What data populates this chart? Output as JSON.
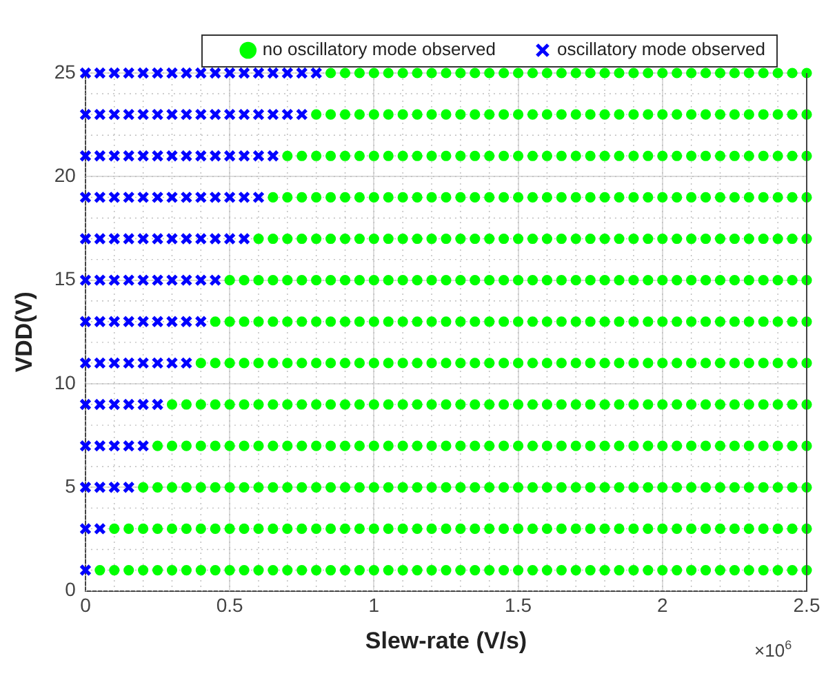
{
  "chart_data": {
    "type": "scatter",
    "xlabel": "Slew-rate (V/s)",
    "ylabel": "VDD(V)",
    "annotations": [
      "×10$^{6}$"
    ],
    "xlim": [
      0,
      2.5
    ],
    "ylim": [
      0,
      25
    ],
    "xticks": [
      0,
      0.5,
      1,
      1.5,
      2,
      2.5
    ],
    "yticks": [
      0,
      5,
      10,
      15,
      20,
      25
    ],
    "grid": true,
    "legend": "top",
    "series": [
      {
        "name": "no oscillatory mode observed",
        "color": "#00ff00",
        "marker": "circle",
        "x": [
          0.05,
          0.1,
          0.15,
          0.2,
          0.25,
          0.3,
          0.35,
          0.4,
          0.45,
          0.5,
          0.55,
          0.6,
          0.65,
          0.7,
          0.75,
          0.8,
          0.85,
          0.9,
          0.95,
          1,
          1.05,
          1.1,
          1.15,
          1.2,
          1.25,
          1.3,
          1.35,
          1.4,
          1.45,
          1.5,
          1.55,
          1.6,
          1.65,
          1.7,
          1.75,
          1.8,
          1.85,
          1.9,
          1.95,
          2,
          2.05,
          2.1,
          2.15,
          2.2,
          2.25,
          2.3,
          2.35,
          2.4,
          2.45,
          2.5,
          0.1,
          0.15,
          0.2,
          0.25,
          0.3,
          0.35,
          0.4,
          0.45,
          0.5,
          0.55,
          0.6,
          0.65,
          0.7,
          0.75,
          0.8,
          0.85,
          0.9,
          0.95,
          1,
          1.05,
          1.1,
          1.15,
          1.2,
          1.25,
          1.3,
          1.35,
          1.4,
          1.45,
          1.5,
          1.55,
          1.6,
          1.65,
          1.7,
          1.75,
          1.8,
          1.85,
          1.9,
          1.95,
          2,
          2.05,
          2.1,
          2.15,
          2.2,
          2.25,
          2.3,
          2.35,
          2.4,
          2.45,
          2.5,
          0.2,
          0.25,
          0.3,
          0.35,
          0.4,
          0.45,
          0.5,
          0.55,
          0.6,
          0.65,
          0.7,
          0.75,
          0.8,
          0.85,
          0.9,
          0.95,
          1,
          1.05,
          1.1,
          1.15,
          1.2,
          1.25,
          1.3,
          1.35,
          1.4,
          1.45,
          1.5,
          1.55,
          1.6,
          1.65,
          1.7,
          1.75,
          1.8,
          1.85,
          1.9,
          1.95,
          2,
          2.05,
          2.1,
          2.15,
          2.2,
          2.25,
          2.3,
          2.35,
          2.4,
          2.45,
          2.5,
          0.25,
          0.3,
          0.35,
          0.4,
          0.45,
          0.5,
          0.55,
          0.6,
          0.65,
          0.7,
          0.75,
          0.8,
          0.85,
          0.9,
          0.95,
          1,
          1.05,
          1.1,
          1.15,
          1.2,
          1.25,
          1.3,
          1.35,
          1.4,
          1.45,
          1.5,
          1.55,
          1.6,
          1.65,
          1.7,
          1.75,
          1.8,
          1.85,
          1.9,
          1.95,
          2,
          2.05,
          2.1,
          2.15,
          2.2,
          2.25,
          2.3,
          2.35,
          2.4,
          2.45,
          2.5,
          0.3,
          0.35,
          0.4,
          0.45,
          0.5,
          0.55,
          0.6,
          0.65,
          0.7,
          0.75,
          0.8,
          0.85,
          0.9,
          0.95,
          1,
          1.05,
          1.1,
          1.15,
          1.2,
          1.25,
          1.3,
          1.35,
          1.4,
          1.45,
          1.5,
          1.55,
          1.6,
          1.65,
          1.7,
          1.75,
          1.8,
          1.85,
          1.9,
          1.95,
          2,
          2.05,
          2.1,
          2.15,
          2.2,
          2.25,
          2.3,
          2.35,
          2.4,
          2.45,
          2.5,
          0.4,
          0.45,
          0.5,
          0.55,
          0.6,
          0.65,
          0.7,
          0.75,
          0.8,
          0.85,
          0.9,
          0.95,
          1,
          1.05,
          1.1,
          1.15,
          1.2,
          1.25,
          1.3,
          1.35,
          1.4,
          1.45,
          1.5,
          1.55,
          1.6,
          1.65,
          1.7,
          1.75,
          1.8,
          1.85,
          1.9,
          1.95,
          2,
          2.05,
          2.1,
          2.15,
          2.2,
          2.25,
          2.3,
          2.35,
          2.4,
          2.45,
          2.5,
          0.45,
          0.5,
          0.55,
          0.6,
          0.65,
          0.7,
          0.75,
          0.8,
          0.85,
          0.9,
          0.95,
          1,
          1.05,
          1.1,
          1.15,
          1.2,
          1.25,
          1.3,
          1.35,
          1.4,
          1.45,
          1.5,
          1.55,
          1.6,
          1.65,
          1.7,
          1.75,
          1.8,
          1.85,
          1.9,
          1.95,
          2,
          2.05,
          2.1,
          2.15,
          2.2,
          2.25,
          2.3,
          2.35,
          2.4,
          2.45,
          2.5,
          0.5,
          0.55,
          0.6,
          0.65,
          0.7,
          0.75,
          0.8,
          0.85,
          0.9,
          0.95,
          1,
          1.05,
          1.1,
          1.15,
          1.2,
          1.25,
          1.3,
          1.35,
          1.4,
          1.45,
          1.5,
          1.55,
          1.6,
          1.65,
          1.7,
          1.75,
          1.8,
          1.85,
          1.9,
          1.95,
          2,
          2.05,
          2.1,
          2.15,
          2.2,
          2.25,
          2.3,
          2.35,
          2.4,
          2.45,
          2.5,
          0.6,
          0.65,
          0.7,
          0.75,
          0.8,
          0.85,
          0.9,
          0.95,
          1,
          1.05,
          1.1,
          1.15,
          1.2,
          1.25,
          1.3,
          1.35,
          1.4,
          1.45,
          1.5,
          1.55,
          1.6,
          1.65,
          1.7,
          1.75,
          1.8,
          1.85,
          1.9,
          1.95,
          2,
          2.05,
          2.1,
          2.15,
          2.2,
          2.25,
          2.3,
          2.35,
          2.4,
          2.45,
          2.5,
          0.65,
          0.7,
          0.75,
          0.8,
          0.85,
          0.9,
          0.95,
          1,
          1.05,
          1.1,
          1.15,
          1.2,
          1.25,
          1.3,
          1.35,
          1.4,
          1.45,
          1.5,
          1.55,
          1.6,
          1.65,
          1.7,
          1.75,
          1.8,
          1.85,
          1.9,
          1.95,
          2,
          2.05,
          2.1,
          2.15,
          2.2,
          2.25,
          2.3,
          2.35,
          2.4,
          2.45,
          2.5,
          0.7,
          0.75,
          0.8,
          0.85,
          0.9,
          0.95,
          1,
          1.05,
          1.1,
          1.15,
          1.2,
          1.25,
          1.3,
          1.35,
          1.4,
          1.45,
          1.5,
          1.55,
          1.6,
          1.65,
          1.7,
          1.75,
          1.8,
          1.85,
          1.9,
          1.95,
          2,
          2.05,
          2.1,
          2.15,
          2.2,
          2.25,
          2.3,
          2.35,
          2.4,
          2.45,
          2.5,
          0.8,
          0.85,
          0.9,
          0.95,
          1,
          1.05,
          1.1,
          1.15,
          1.2,
          1.25,
          1.3,
          1.35,
          1.4,
          1.45,
          1.5,
          1.55,
          1.6,
          1.65,
          1.7,
          1.75,
          1.8,
          1.85,
          1.9,
          1.95,
          2,
          2.05,
          2.1,
          2.15,
          2.2,
          2.25,
          2.3,
          2.35,
          2.4,
          2.45,
          2.5,
          0.85,
          0.9,
          0.95,
          1,
          1.05,
          1.1,
          1.15,
          1.2,
          1.25,
          1.3,
          1.35,
          1.4,
          1.45,
          1.5,
          1.55,
          1.6,
          1.65,
          1.7,
          1.75,
          1.8,
          1.85,
          1.9,
          1.95,
          2,
          2.05,
          2.1,
          2.15,
          2.2,
          2.25,
          2.3,
          2.35,
          2.4,
          2.45,
          2.5
        ],
        "values": [
          1,
          1,
          1,
          1,
          1,
          1,
          1,
          1,
          1,
          1,
          1,
          1,
          1,
          1,
          1,
          1,
          1,
          1,
          1,
          1,
          1,
          1,
          1,
          1,
          1,
          1,
          1,
          1,
          1,
          1,
          1,
          1,
          1,
          1,
          1,
          1,
          1,
          1,
          1,
          1,
          1,
          1,
          1,
          1,
          1,
          1,
          1,
          1,
          1,
          1,
          3,
          3,
          3,
          3,
          3,
          3,
          3,
          3,
          3,
          3,
          3,
          3,
          3,
          3,
          3,
          3,
          3,
          3,
          3,
          3,
          3,
          3,
          3,
          3,
          3,
          3,
          3,
          3,
          3,
          3,
          3,
          3,
          3,
          3,
          3,
          3,
          3,
          3,
          3,
          3,
          3,
          3,
          3,
          3,
          3,
          3,
          3,
          3,
          3,
          5,
          5,
          5,
          5,
          5,
          5,
          5,
          5,
          5,
          5,
          5,
          5,
          5,
          5,
          5,
          5,
          5,
          5,
          5,
          5,
          5,
          5,
          5,
          5,
          5,
          5,
          5,
          5,
          5,
          5,
          5,
          5,
          5,
          5,
          5,
          5,
          5,
          5,
          5,
          5,
          5,
          5,
          5,
          5,
          5,
          5,
          5,
          7,
          7,
          7,
          7,
          7,
          7,
          7,
          7,
          7,
          7,
          7,
          7,
          7,
          7,
          7,
          7,
          7,
          7,
          7,
          7,
          7,
          7,
          7,
          7,
          7,
          7,
          7,
          7,
          7,
          7,
          7,
          7,
          7,
          7,
          7,
          7,
          7,
          7,
          7,
          7,
          7,
          7,
          7,
          7,
          7,
          7,
          9,
          9,
          9,
          9,
          9,
          9,
          9,
          9,
          9,
          9,
          9,
          9,
          9,
          9,
          9,
          9,
          9,
          9,
          9,
          9,
          9,
          9,
          9,
          9,
          9,
          9,
          9,
          9,
          9,
          9,
          9,
          9,
          9,
          9,
          9,
          9,
          9,
          9,
          9,
          9,
          9,
          9,
          9,
          9,
          9,
          11,
          11,
          11,
          11,
          11,
          11,
          11,
          11,
          11,
          11,
          11,
          11,
          11,
          11,
          11,
          11,
          11,
          11,
          11,
          11,
          11,
          11,
          11,
          11,
          11,
          11,
          11,
          11,
          11,
          11,
          11,
          11,
          11,
          11,
          11,
          11,
          11,
          11,
          11,
          11,
          11,
          11,
          11,
          13,
          13,
          13,
          13,
          13,
          13,
          13,
          13,
          13,
          13,
          13,
          13,
          13,
          13,
          13,
          13,
          13,
          13,
          13,
          13,
          13,
          13,
          13,
          13,
          13,
          13,
          13,
          13,
          13,
          13,
          13,
          13,
          13,
          13,
          13,
          13,
          13,
          13,
          13,
          13,
          13,
          13,
          15,
          15,
          15,
          15,
          15,
          15,
          15,
          15,
          15,
          15,
          15,
          15,
          15,
          15,
          15,
          15,
          15,
          15,
          15,
          15,
          15,
          15,
          15,
          15,
          15,
          15,
          15,
          15,
          15,
          15,
          15,
          15,
          15,
          15,
          15,
          15,
          15,
          15,
          15,
          15,
          15,
          17,
          17,
          17,
          17,
          17,
          17,
          17,
          17,
          17,
          17,
          17,
          17,
          17,
          17,
          17,
          17,
          17,
          17,
          17,
          17,
          17,
          17,
          17,
          17,
          17,
          17,
          17,
          17,
          17,
          17,
          17,
          17,
          17,
          17,
          17,
          17,
          17,
          17,
          17,
          19,
          19,
          19,
          19,
          19,
          19,
          19,
          19,
          19,
          19,
          19,
          19,
          19,
          19,
          19,
          19,
          19,
          19,
          19,
          19,
          19,
          19,
          19,
          19,
          19,
          19,
          19,
          19,
          19,
          19,
          19,
          19,
          19,
          19,
          19,
          19,
          19,
          19,
          21,
          21,
          21,
          21,
          21,
          21,
          21,
          21,
          21,
          21,
          21,
          21,
          21,
          21,
          21,
          21,
          21,
          21,
          21,
          21,
          21,
          21,
          21,
          21,
          21,
          21,
          21,
          21,
          21,
          21,
          21,
          21,
          21,
          21,
          21,
          21,
          21,
          23,
          23,
          23,
          23,
          23,
          23,
          23,
          23,
          23,
          23,
          23,
          23,
          23,
          23,
          23,
          23,
          23,
          23,
          23,
          23,
          23,
          23,
          23,
          23,
          23,
          23,
          23,
          23,
          23,
          23,
          23,
          23,
          23,
          23,
          23,
          25,
          25,
          25,
          25,
          25,
          25,
          25,
          25,
          25,
          25,
          25,
          25,
          25,
          25,
          25,
          25,
          25,
          25,
          25,
          25,
          25,
          25,
          25,
          25,
          25,
          25,
          25,
          25,
          25,
          25,
          25,
          25,
          25,
          25
        ]
      },
      {
        "name": "oscillatory mode observed",
        "color": "#0000ff",
        "marker": "cross",
        "x": [
          0,
          0,
          0.05,
          0,
          0.05,
          0.1,
          0.15,
          0,
          0.05,
          0.1,
          0.15,
          0.2,
          0,
          0.05,
          0.1,
          0.15,
          0.2,
          0.25,
          0,
          0.05,
          0.1,
          0.15,
          0.2,
          0.25,
          0.3,
          0.35,
          0,
          0.05,
          0.1,
          0.15,
          0.2,
          0.25,
          0.3,
          0.35,
          0.4,
          0,
          0.05,
          0.1,
          0.15,
          0.2,
          0.25,
          0.3,
          0.35,
          0.4,
          0.45,
          0,
          0.05,
          0.1,
          0.15,
          0.2,
          0.25,
          0.3,
          0.35,
          0.4,
          0.45,
          0.5,
          0.55,
          0,
          0.05,
          0.1,
          0.15,
          0.2,
          0.25,
          0.3,
          0.35,
          0.4,
          0.45,
          0.5,
          0.55,
          0.6,
          0,
          0.05,
          0.1,
          0.15,
          0.2,
          0.25,
          0.3,
          0.35,
          0.4,
          0.45,
          0.5,
          0.55,
          0.6,
          0.65,
          0,
          0.05,
          0.1,
          0.15,
          0.2,
          0.25,
          0.3,
          0.35,
          0.4,
          0.45,
          0.5,
          0.55,
          0.6,
          0.65,
          0.7,
          0.75,
          0,
          0.05,
          0.1,
          0.15,
          0.2,
          0.25,
          0.3,
          0.35,
          0.4,
          0.45,
          0.5,
          0.55,
          0.6,
          0.65,
          0.7,
          0.75,
          0.8
        ],
        "values": [
          1,
          3,
          3,
          5,
          5,
          5,
          5,
          7,
          7,
          7,
          7,
          7,
          9,
          9,
          9,
          9,
          9,
          9,
          11,
          11,
          11,
          11,
          11,
          11,
          11,
          11,
          13,
          13,
          13,
          13,
          13,
          13,
          13,
          13,
          13,
          15,
          15,
          15,
          15,
          15,
          15,
          15,
          15,
          15,
          15,
          17,
          17,
          17,
          17,
          17,
          17,
          17,
          17,
          17,
          17,
          17,
          17,
          19,
          19,
          19,
          19,
          19,
          19,
          19,
          19,
          19,
          19,
          19,
          19,
          19,
          21,
          21,
          21,
          21,
          21,
          21,
          21,
          21,
          21,
          21,
          21,
          21,
          21,
          21,
          23,
          23,
          23,
          23,
          23,
          23,
          23,
          23,
          23,
          23,
          23,
          23,
          23,
          23,
          23,
          23,
          25,
          25,
          25,
          25,
          25,
          25,
          25,
          25,
          25,
          25,
          25,
          25,
          25,
          25,
          25,
          25,
          25
        ]
      }
    ]
  }
}
